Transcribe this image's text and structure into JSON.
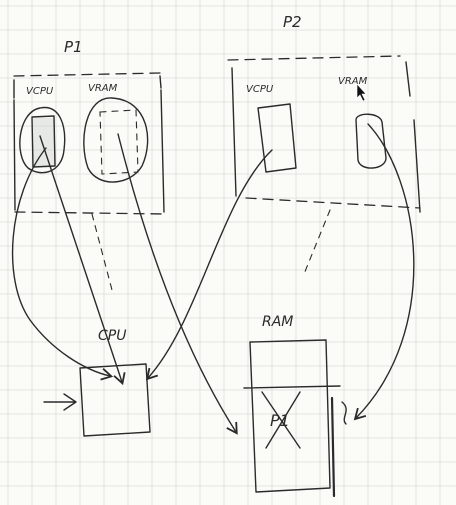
{
  "labels": {
    "p1": "P1",
    "p2": "P2",
    "p1_vcpu": "VCPU",
    "p1_vram": "VRAM",
    "p2_vcpu": "VCPU",
    "p2_vram": "VRAM",
    "cpu": "CPU",
    "ram": "RAM",
    "ram_inner": "P1"
  },
  "colors": {
    "ink": "#2b2b2b",
    "paper": "#fbfbf8",
    "grid": "#e3e3de"
  },
  "icons": {
    "cursor": "mouse-pointer-icon"
  }
}
